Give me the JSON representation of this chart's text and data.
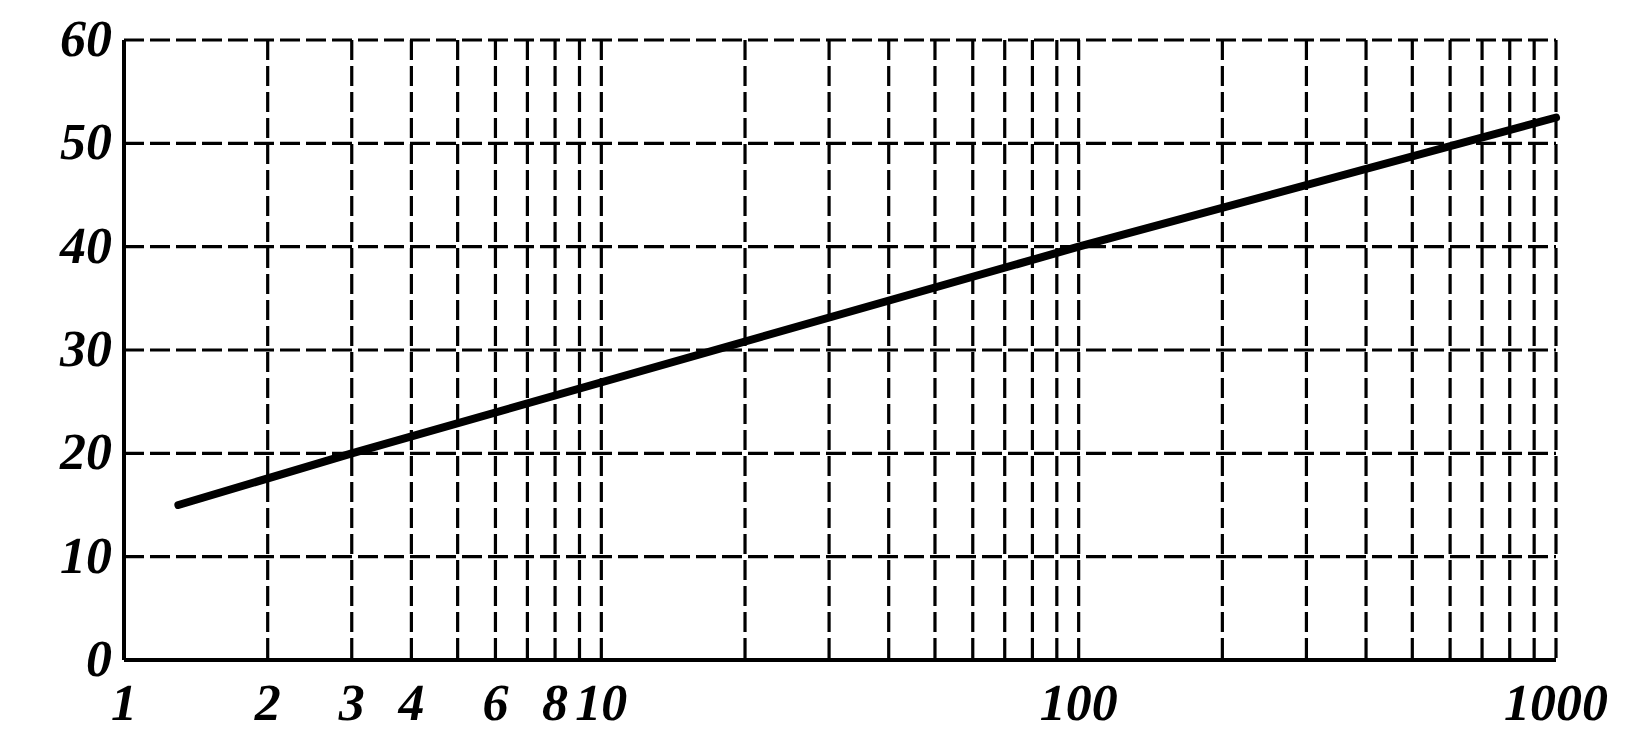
{
  "chart_data": {
    "type": "line",
    "log": "x",
    "x": [
      1.3,
      3,
      100,
      1000
    ],
    "values": [
      15,
      20,
      40,
      52.5
    ],
    "color": "#000000",
    "xlim": [
      1,
      1000
    ],
    "ylim": [
      0,
      60
    ],
    "xticks": [
      1,
      2,
      3,
      4,
      {
        "value": 5,
        "label": null
      },
      6,
      {
        "value": 7,
        "label": null
      },
      8,
      {
        "value": 9,
        "label": null
      },
      10,
      {
        "value": 20,
        "label": null
      },
      {
        "value": 30,
        "label": null
      },
      {
        "value": 40,
        "label": null
      },
      {
        "value": 50,
        "label": null
      },
      {
        "value": 60,
        "label": null
      },
      {
        "value": 70,
        "label": null
      },
      {
        "value": 80,
        "label": null
      },
      {
        "value": 90,
        "label": null
      },
      100,
      {
        "value": 200,
        "label": null
      },
      {
        "value": 300,
        "label": null
      },
      {
        "value": 400,
        "label": null
      },
      {
        "value": 500,
        "label": null
      },
      {
        "value": 600,
        "label": null
      },
      {
        "value": 700,
        "label": null
      },
      {
        "value": 800,
        "label": null
      },
      {
        "value": 900,
        "label": null
      },
      1000
    ],
    "yticks": [
      0,
      10,
      20,
      30,
      40,
      50,
      60
    ],
    "grid": true
  }
}
